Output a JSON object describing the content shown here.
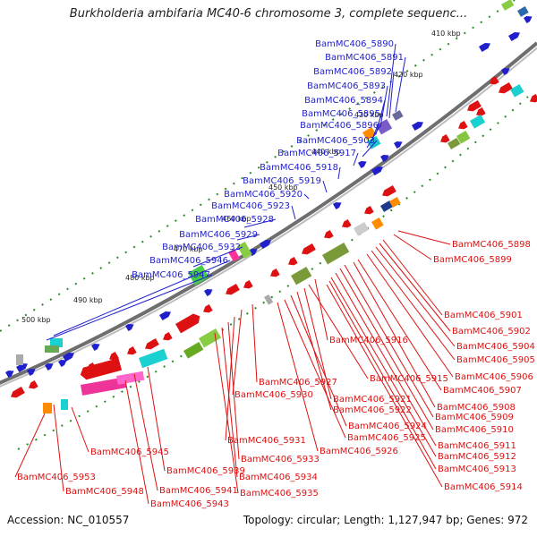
{
  "title": "Burkholderia ambifaria MC40-6 chromosome 3, complete sequenc...",
  "footer": {
    "accession": "Accession: NC_010557",
    "stats": "Topology: circular; Length: 1,127,947 bp; Genes: 972"
  },
  "colors": {
    "backbone": "#6e6e6e",
    "forward_gene": "#1f1fcc",
    "reverse_gene": "#dd1111",
    "forward_label": "#1f1fcc",
    "reverse_label": "#dd1111",
    "tick_dots": "#2a8a2a"
  },
  "ticks": [
    "410 kbp",
    "420 kbp",
    "430 kbp",
    "440 kbp",
    "450 kbp",
    "460 kbp",
    "470 kbp",
    "480 kbp",
    "490 kbp",
    "500 kbp"
  ],
  "forward_labels": [
    "BamMC406_5890",
    "BamMC406_5891",
    "BamMC406_5892",
    "BamMC406_5893",
    "BamMC406_5894",
    "BamMC406_5895",
    "BamMC406_5896",
    "BamMC406_5903",
    "BamMC406_5917",
    "BamMC406_5918",
    "BamMC406_5919",
    "BamMC406_5920",
    "BamMC406_5923",
    "BamMC406_5928",
    "BamMC406_5929",
    "BamMC406_5932",
    "BamMC406_5946",
    "BamMC406_5947"
  ],
  "reverse_labels_right": [
    "BamMC406_5898",
    "BamMC406_5899",
    "BamMC406_5901",
    "BamMC406_5902",
    "BamMC406_5904",
    "BamMC406_5905",
    "BamMC406_5906",
    "BamMC406_5907",
    "BamMC406_5908",
    "BamMC406_5909",
    "BamMC406_5910",
    "BamMC406_5911",
    "BamMC406_5912",
    "BamMC406_5913",
    "BamMC406_5914"
  ],
  "reverse_labels_middle": [
    "BamMC406_5916",
    "BamMC406_5915",
    "BamMC406_5921",
    "BamMC406_5922",
    "BamMC406_5924",
    "BamMC406_5925",
    "BamMC406_5926",
    "BamMC406_5927",
    "BamMC406_5930",
    "BamMC406_5931",
    "BamMC406_5933",
    "BamMC406_5934",
    "BamMC406_5935"
  ],
  "reverse_labels_bottom": [
    "BamMC406_5945",
    "BamMC406_5939",
    "BamMC406_5941",
    "BamMC406_5943",
    "BamMC406_5948",
    "BamMC406_5953"
  ]
}
